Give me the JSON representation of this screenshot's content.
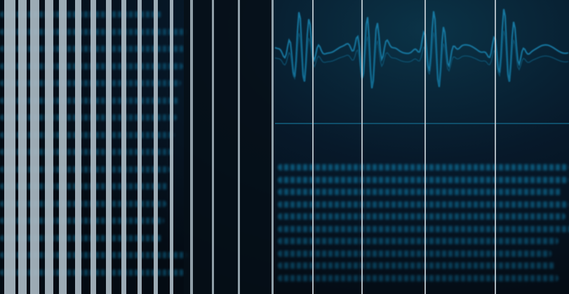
{
  "scene": {
    "kind": "blurred data-visualization backdrop with vertical light bars",
    "colors": {
      "background": "#050d16",
      "glow": "#0b3347",
      "data_text": "#0d6a91",
      "waveform": "#1479a3",
      "bar_light": "#a9b8c2",
      "bar_thin": "#c9d2d8"
    },
    "waveform_peaks": 4,
    "left_text_rows": 16,
    "right_text_rows": 10
  }
}
